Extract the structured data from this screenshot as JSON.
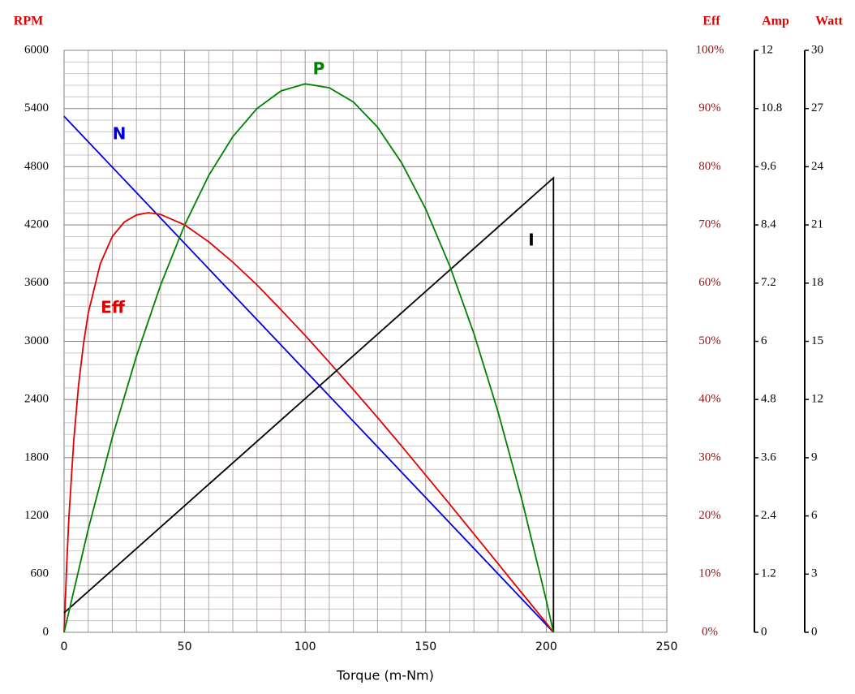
{
  "chart_data": {
    "type": "line",
    "xlabel": "Torque (m-Nm)",
    "xlim": [
      0,
      250
    ],
    "xticks": [
      0,
      50,
      100,
      150,
      200,
      250
    ],
    "grid": true,
    "axes": [
      {
        "title": "RPM",
        "lim": [
          0,
          6000
        ],
        "ticks": [
          0,
          600,
          1200,
          1800,
          2400,
          3000,
          3600,
          4200,
          4800,
          5400,
          6000
        ]
      },
      {
        "title": "Eff",
        "lim": [
          0,
          100
        ],
        "ticks": [
          {
            "value": 0,
            "label": "0%"
          },
          {
            "value": 10,
            "label": "10%"
          },
          {
            "value": 20,
            "label": "20%"
          },
          {
            "value": 30,
            "label": "30%"
          },
          {
            "value": 40,
            "label": "40%"
          },
          {
            "value": 50,
            "label": "50%"
          },
          {
            "value": 60,
            "label": "60%"
          },
          {
            "value": 70,
            "label": "70%"
          },
          {
            "value": 80,
            "label": "80%"
          },
          {
            "value": 90,
            "label": "90%"
          },
          {
            "value": 100,
            "label": "100%"
          }
        ]
      },
      {
        "title": "Amp",
        "lim": [
          0,
          12
        ],
        "ticks": [
          0,
          1.2,
          2.4,
          3.6,
          4.8,
          6,
          7.2,
          8.4,
          9.6,
          10.8,
          12
        ]
      },
      {
        "title": "Watt",
        "lim": [
          0,
          30
        ],
        "ticks": [
          0,
          3,
          6,
          9,
          12,
          15,
          18,
          21,
          24,
          27,
          30
        ]
      }
    ],
    "series": [
      {
        "name": "N",
        "color": "#0000dd",
        "axis": 0,
        "x": [
          0,
          203
        ],
        "values": [
          5320,
          0
        ]
      },
      {
        "name": "Eff",
        "color": "#e00000",
        "axis": 1,
        "x": [
          0,
          1,
          2,
          4,
          6,
          8,
          10,
          15,
          20,
          25,
          30,
          35,
          40,
          50,
          60,
          70,
          80,
          90,
          100,
          110,
          120,
          130,
          140,
          150,
          160,
          170,
          180,
          190,
          200,
          203
        ],
        "values": [
          0,
          10.8,
          19.7,
          32.9,
          42.4,
          49.4,
          54.8,
          63.3,
          68.0,
          70.5,
          71.7,
          72.1,
          71.8,
          70.0,
          67.1,
          63.6,
          59.7,
          55.4,
          51.0,
          46.4,
          41.7,
          36.9,
          32.0,
          27.0,
          22.0,
          16.9,
          11.8,
          6.7,
          1.6,
          0
        ]
      },
      {
        "name": "I",
        "color": "#000000",
        "axis": 2,
        "x": [
          0,
          203,
          203
        ],
        "values": [
          0.4,
          9.37,
          0
        ]
      },
      {
        "name": "P",
        "color": "#008000",
        "axis": 3,
        "x": [
          0,
          10,
          20,
          30,
          40,
          50,
          60,
          70,
          80,
          90,
          100,
          110,
          120,
          130,
          140,
          150,
          160,
          170,
          180,
          190,
          200,
          203
        ],
        "values": [
          0,
          5.3,
          10.04,
          14.24,
          17.89,
          20.99,
          23.55,
          25.55,
          27.0,
          27.91,
          28.27,
          28.07,
          27.34,
          26.04,
          24.2,
          21.82,
          18.88,
          15.4,
          11.36,
          6.78,
          1.65,
          0
        ]
      }
    ]
  }
}
